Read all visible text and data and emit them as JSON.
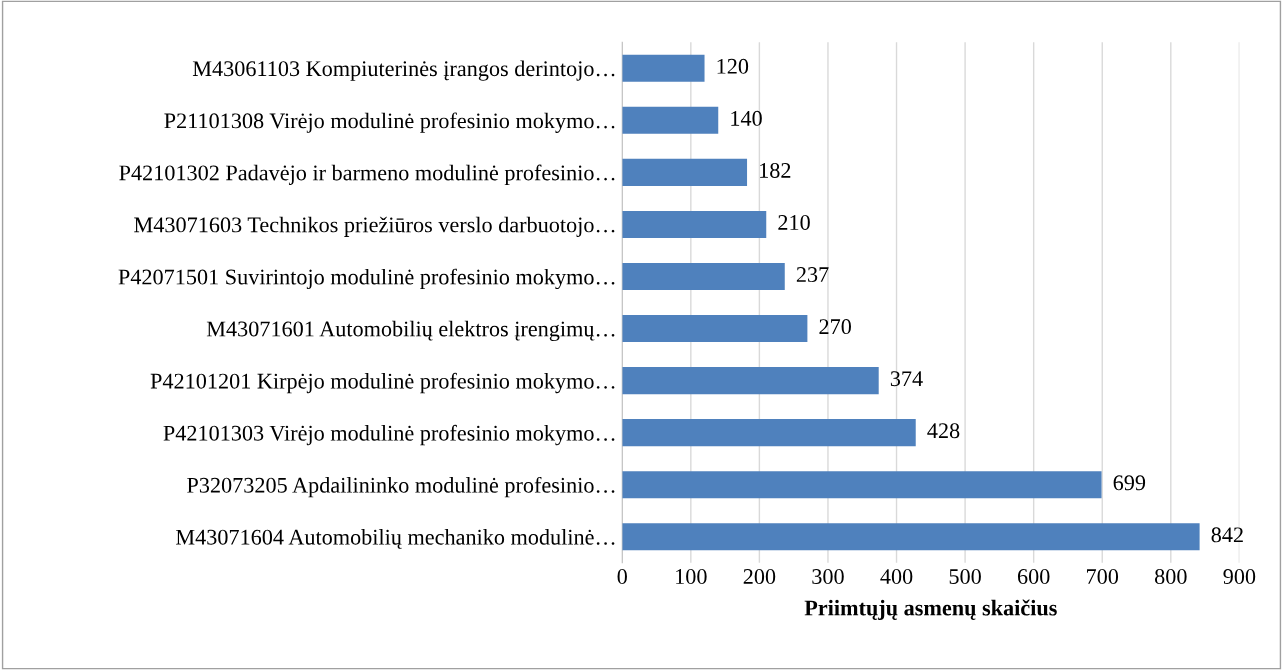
{
  "chart_data": {
    "type": "bar",
    "orientation": "horizontal",
    "xlabel": "Priimtųjų asmenų skaičius",
    "categories": [
      "M43061103 Kompiuterinės įrangos derintojo…",
      "P21101308 Virėjo modulinė profesinio mokymo…",
      "P42101302 Padavėjo ir barmeno modulinė profesinio…",
      "M43071603 Technikos priežiūros verslo darbuotojo…",
      "P42071501 Suvirintojo modulinė profesinio mokymo…",
      "M43071601 Automobilių elektros įrengimų…",
      "P42101201 Kirpėjo modulinė profesinio mokymo…",
      "P42101303 Virėjo modulinė profesinio mokymo…",
      "P32073205 Apdailininko modulinė profesinio…",
      "M43071604 Automobilių mechaniko modulinė…"
    ],
    "values": [
      120,
      140,
      182,
      210,
      237,
      270,
      374,
      428,
      699,
      842
    ],
    "color": "#4f81bd",
    "xlim": [
      0,
      900
    ],
    "xticks": [
      0,
      100,
      200,
      300,
      400,
      500,
      600,
      700,
      800,
      900
    ],
    "grid": "x",
    "data_labels": true
  }
}
